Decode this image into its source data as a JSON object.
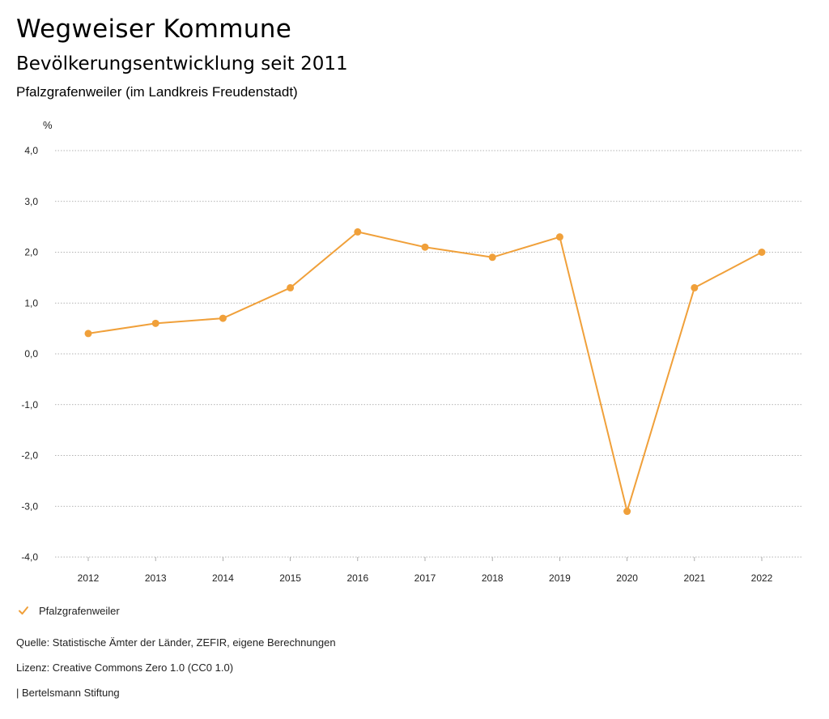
{
  "header": {
    "title": "Wegweiser Kommune",
    "subtitle": "Bevölkerungsentwicklung seit 2011",
    "region": "Pfalzgrafenweiler (im Landkreis Freudenstadt)"
  },
  "chart_data": {
    "type": "line",
    "ylabel": "%",
    "xlabel": "",
    "x": [
      "2012",
      "2013",
      "2014",
      "2015",
      "2016",
      "2017",
      "2018",
      "2019",
      "2020",
      "2021",
      "2022"
    ],
    "series": [
      {
        "name": "Pfalzgrafenweiler",
        "color": "#F0A03A",
        "values": [
          0.4,
          0.6,
          0.7,
          1.3,
          2.4,
          2.1,
          1.9,
          2.3,
          -3.1,
          1.3,
          2.0
        ]
      }
    ],
    "ylim": [
      -4,
      4
    ],
    "yticks": [
      4,
      3,
      2,
      1,
      0,
      -1,
      -2,
      -3,
      -4
    ],
    "ytick_labels": [
      "4,0",
      "3,0",
      "2,0",
      "1,0",
      "0,0",
      "-1,0",
      "-2,0",
      "-3,0",
      "-4,0"
    ],
    "grid": true,
    "legend_position": "bottom-left"
  },
  "legend": {
    "label": "Pfalzgrafenweiler",
    "icon": "check-icon"
  },
  "footer": {
    "source": "Quelle: Statistische Ämter der Länder, ZEFIR, eigene Berechnungen",
    "license": "Lizenz: Creative Commons Zero 1.0 (CC0 1.0)",
    "publisher": "| Bertelsmann Stiftung"
  }
}
